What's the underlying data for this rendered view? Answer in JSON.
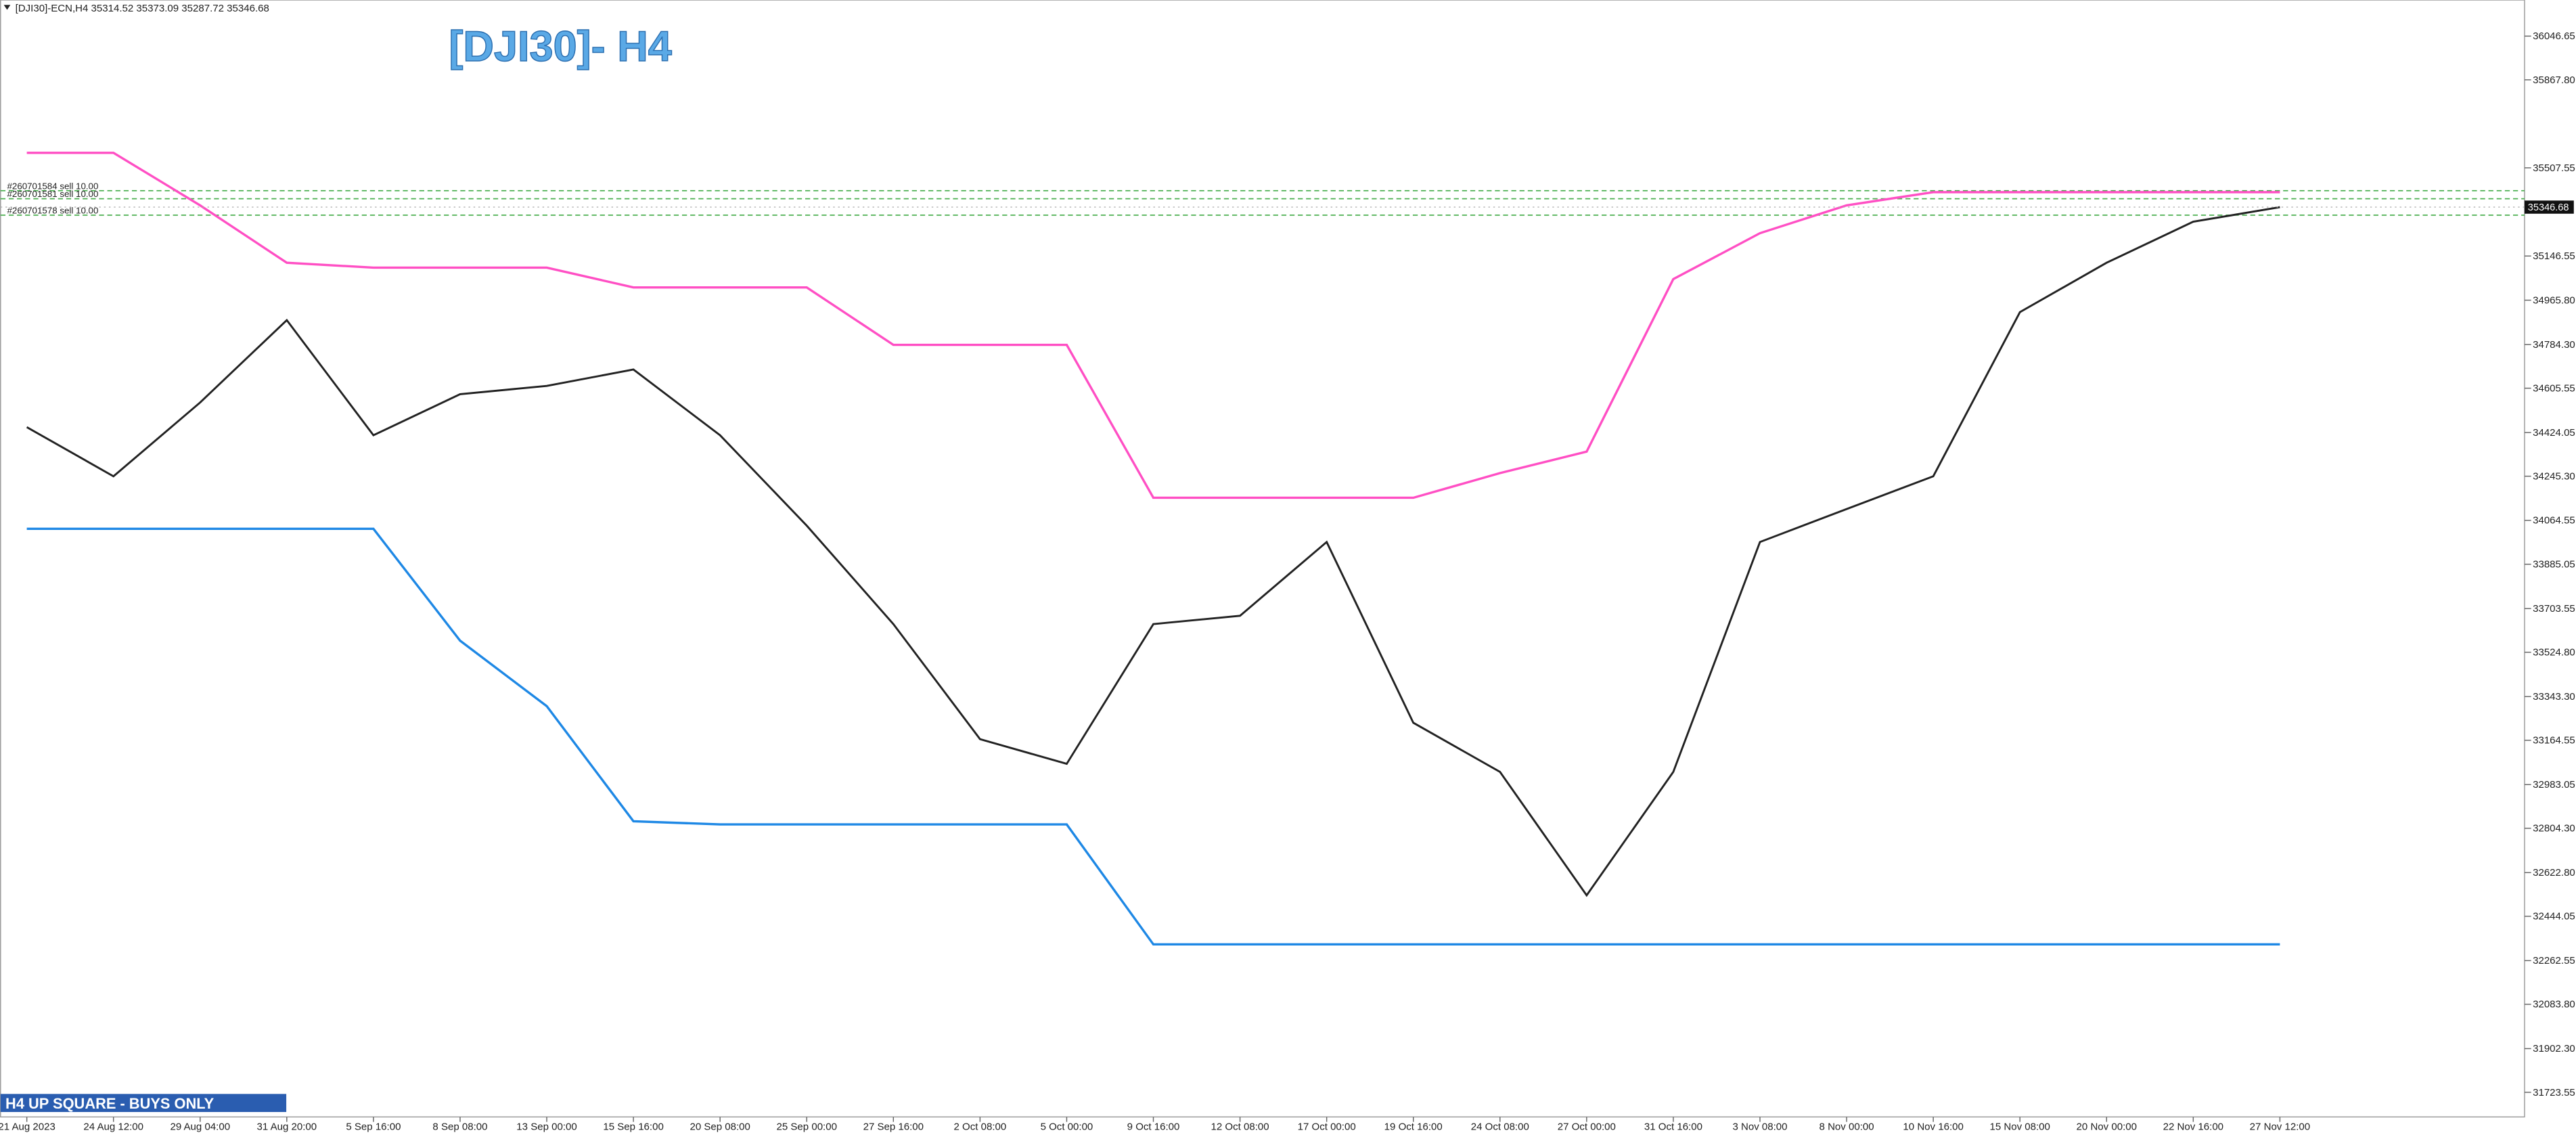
{
  "header": "[DJI30]-ECN,H4  35314.52 35373.09 35287.72 35346.68",
  "banner": "H4  UP SQUARE - BUYS ONLY",
  "chart_data": {
    "type": "line",
    "title": "[DJI30]- H4",
    "categories": [
      "21 Aug 2023",
      "24 Aug 12:00",
      "29 Aug 04:00",
      "31 Aug 20:00",
      "5 Sep 16:00",
      "8 Sep 08:00",
      "13 Sep 00:00",
      "15 Sep 16:00",
      "20 Sep 08:00",
      "25 Sep 00:00",
      "27 Sep 16:00",
      "2 Oct 08:00",
      "5 Oct 00:00",
      "9 Oct 16:00",
      "12 Oct 08:00",
      "17 Oct 00:00",
      "19 Oct 16:00",
      "24 Oct 08:00",
      "27 Oct 00:00",
      "31 Oct 16:00",
      "3 Nov 08:00",
      "8 Nov 00:00",
      "10 Nov 16:00",
      "15 Nov 08:00",
      "20 Nov 00:00",
      "22 Nov 16:00",
      "27 Nov 12:00"
    ],
    "series": [
      {
        "color": "#222222",
        "values": [
          34446,
          34245,
          34547,
          34884,
          34413,
          34581,
          34615,
          34682,
          34413,
          34043,
          33640,
          33169,
          33068,
          33640,
          33674,
          33976,
          33236,
          33035,
          32530,
          33035,
          33976,
          34111,
          34245,
          34917,
          35119,
          35287,
          35346.68
        ]
      },
      {
        "color": "#ff4fc4",
        "values": [
          35569,
          35569,
          35354,
          35119,
          35099,
          35099,
          35099,
          35018,
          35018,
          35018,
          34783,
          34783,
          34783,
          34157,
          34157,
          34157,
          34157,
          34258,
          34346,
          35052,
          35240,
          35354,
          35408,
          35408,
          35408,
          35408,
          35408
        ]
      },
      {
        "color": "#1e88e5",
        "values": [
          34030,
          34030,
          34030,
          34030,
          34030,
          33572,
          33304,
          32833,
          32820,
          32820,
          32820,
          32820,
          32820,
          32329,
          32329,
          32329,
          32329,
          32329,
          32329,
          32329,
          32329,
          32329,
          32329,
          32329,
          32329,
          32329,
          32329
        ]
      }
    ],
    "ylim": [
      31622.7,
      36194.5
    ],
    "yticks": [
      36046.65,
      {
        "value": 35867.8,
        "label": "35867.80"
      },
      35507.55,
      35146.55,
      {
        "value": 34965.8,
        "label": "34965.80"
      },
      {
        "value": 34784.3,
        "label": "34784.30"
      },
      34605.55,
      34424.05,
      {
        "value": 34245.3,
        "label": "34245.30"
      },
      34064.55,
      33885.05,
      33703.55,
      {
        "value": 33524.8,
        "label": "33524.80"
      },
      {
        "value": 33343.3,
        "label": "33343.30"
      },
      33164.55,
      32983.05,
      {
        "value": 32804.3,
        "label": "32804.30"
      },
      {
        "value": 32622.8,
        "label": "32622.80"
      },
      32444.05,
      32262.55,
      {
        "value": 32083.8,
        "label": "32083.80"
      },
      {
        "value": 31902.3,
        "label": "31902.30"
      },
      31723.55
    ],
    "last_price": 35346.68,
    "orders": [
      {
        "label": "#260701584 sell 10.00",
        "price": 35414
      },
      {
        "label": "#260701581 sell 10.00",
        "price": 35381
      },
      {
        "label": "#260701578 sell 10.00",
        "price": 35314
      }
    ]
  }
}
